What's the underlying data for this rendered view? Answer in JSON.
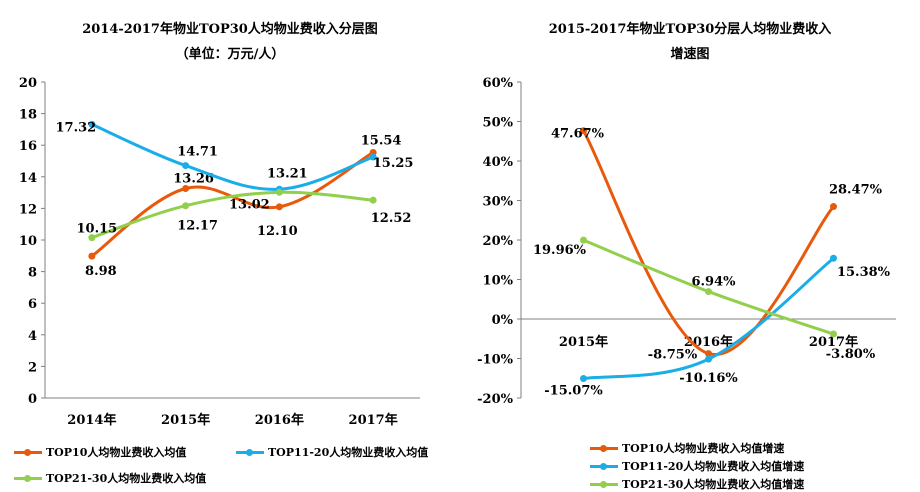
{
  "colors": {
    "top10": "#E8590C",
    "top11_20": "#1AAEE8",
    "top21_30": "#92CF4C",
    "axis": "#808080"
  },
  "chart_data": [
    {
      "type": "line",
      "title": "2014-2017年物业TOP30人均物业费收入分层图",
      "subtitle": "（单位：万元/人）",
      "categories": [
        "2014年",
        "2015年",
        "2016年",
        "2017年"
      ],
      "ylim": [
        0,
        20
      ],
      "yticks": [
        "0",
        "2",
        "4",
        "6",
        "8",
        "10",
        "12",
        "14",
        "16",
        "18",
        "20"
      ],
      "ytick_values": [
        0,
        2,
        4,
        6,
        8,
        10,
        12,
        14,
        16,
        18,
        20
      ],
      "grid": false,
      "legend_position": "bottom",
      "series": [
        {
          "name": "TOP10人均物业费收入均值",
          "values": [
            8.98,
            13.26,
            12.1,
            15.54
          ],
          "labels": [
            "8.98",
            "13.26",
            "12.10",
            "15.54"
          ]
        },
        {
          "name": "TOP11-20人均物业费收入均值",
          "values": [
            17.32,
            14.71,
            13.21,
            15.25
          ],
          "labels": [
            "17.32",
            "14.71",
            "13.21",
            "15.25"
          ]
        },
        {
          "name": "TOP21-30人均物业费收入均值",
          "values": [
            10.15,
            12.17,
            13.02,
            12.52
          ],
          "labels": [
            "10.15",
            "12.17",
            "13.02",
            "12.52"
          ]
        }
      ]
    },
    {
      "type": "line",
      "title": "2015-2017年物业TOP30分层人均物业费收入",
      "subtitle": "增速图",
      "categories": [
        "2015年",
        "2016年",
        "2017年"
      ],
      "ylim": [
        -20,
        60
      ],
      "yticks": [
        "-20%",
        "-10%",
        "0%",
        "10%",
        "20%",
        "30%",
        "40%",
        "50%",
        "60%"
      ],
      "ytick_values": [
        -20,
        -10,
        0,
        10,
        20,
        30,
        40,
        50,
        60
      ],
      "grid": false,
      "legend_position": "bottom",
      "series": [
        {
          "name": "TOP10人均物业费收入均值增速",
          "values": [
            47.67,
            -8.75,
            28.47
          ],
          "labels": [
            "47.67%",
            "-8.75%",
            "28.47%"
          ]
        },
        {
          "name": "TOP11-20人均物业费收入均值增速",
          "values": [
            -15.07,
            -10.16,
            15.38
          ],
          "labels": [
            "-15.07%",
            "-10.16%",
            "15.38%"
          ]
        },
        {
          "name": "TOP21-30人均物业费收入均值增速",
          "values": [
            19.96,
            6.94,
            -3.8
          ],
          "labels": [
            "19.96%",
            "6.94%",
            "-3.80%"
          ]
        }
      ]
    }
  ]
}
